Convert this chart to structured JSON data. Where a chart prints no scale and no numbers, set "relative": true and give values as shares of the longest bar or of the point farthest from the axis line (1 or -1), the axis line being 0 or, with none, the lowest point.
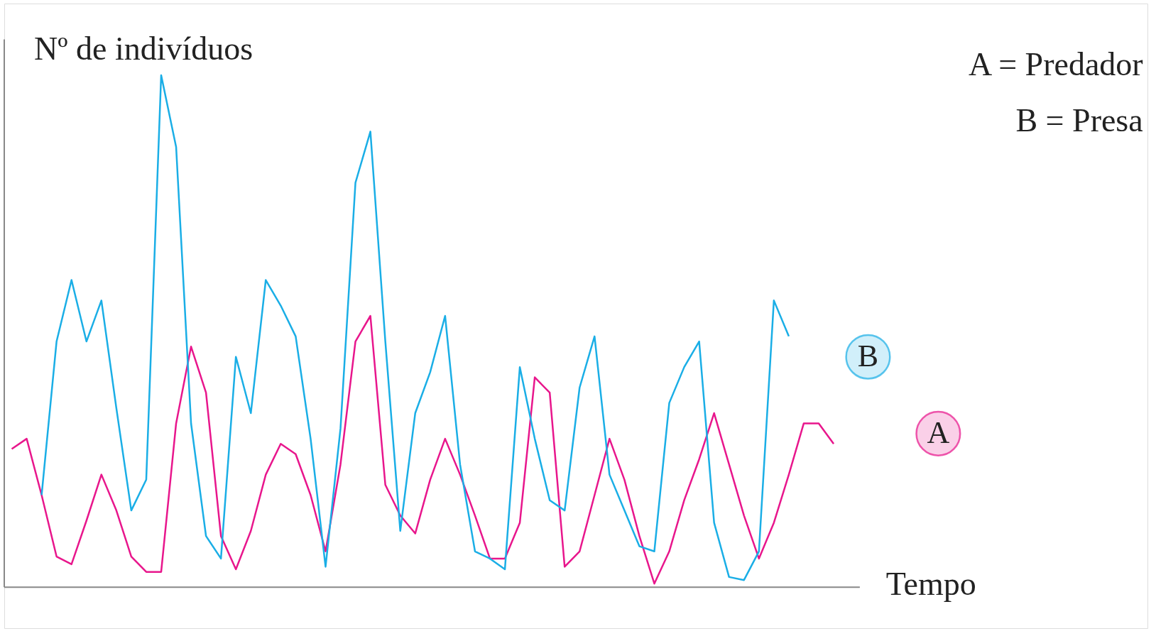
{
  "chart_data": {
    "type": "line",
    "relative": true,
    "xlabel": "Tempo",
    "ylabel": "Nº de indivíduos",
    "categories": [
      null,
      null,
      null,
      null,
      null,
      null,
      null,
      null,
      null,
      null,
      null,
      null,
      null,
      null,
      null,
      null,
      null,
      null,
      null,
      null,
      null,
      null,
      null,
      null,
      null,
      null,
      null,
      null,
      null,
      null,
      null,
      null,
      null,
      null,
      null,
      null,
      null,
      null,
      null,
      null,
      null,
      null,
      null,
      null,
      null,
      null,
      null,
      null,
      null,
      null,
      null,
      null,
      null,
      null,
      null,
      null
    ],
    "series": [
      {
        "name": "A",
        "color": "#e8168c",
        "values": [
          0.27,
          0.29,
          0.18,
          0.06,
          0.045,
          0.13,
          0.22,
          0.15,
          0.06,
          0.03,
          0.03,
          0.32,
          0.47,
          0.38,
          0.1,
          0.035,
          0.11,
          0.22,
          0.28,
          0.26,
          0.18,
          0.07,
          0.24,
          0.48,
          0.53,
          0.2,
          0.14,
          0.105,
          0.21,
          0.29,
          0.22,
          0.14,
          0.056,
          0.056,
          0.126,
          0.41,
          0.38,
          0.04,
          0.07,
          0.18,
          0.29,
          0.21,
          0.1,
          0.007,
          0.07,
          0.17,
          0.25,
          0.34,
          0.24,
          0.14,
          0.056,
          0.126,
          0.22,
          0.32,
          0.32,
          0.28
        ]
      },
      {
        "name": "B",
        "color": "#1aaee6",
        "values": [
          null,
          null,
          0.18,
          0.48,
          0.6,
          0.48,
          0.56,
          0.35,
          0.15,
          0.21,
          1,
          0.86,
          0.32,
          0.1,
          0.056,
          0.45,
          0.34,
          0.6,
          0.55,
          0.49,
          0.29,
          0.04,
          0.31,
          0.79,
          0.89,
          0.48,
          0.11,
          0.34,
          0.42,
          0.53,
          0.24,
          0.07,
          0.056,
          0.035,
          0.43,
          0.29,
          0.17,
          0.15,
          0.39,
          0.49,
          0.22,
          0.15,
          0.08,
          0.07,
          0.36,
          0.43,
          0.48,
          0.126,
          0.02,
          0.014,
          0.07,
          0.56,
          0.49,
          null,
          null,
          null
        ]
      }
    ],
    "annotations": [
      "A = Predador",
      "B = Presa"
    ]
  }
}
